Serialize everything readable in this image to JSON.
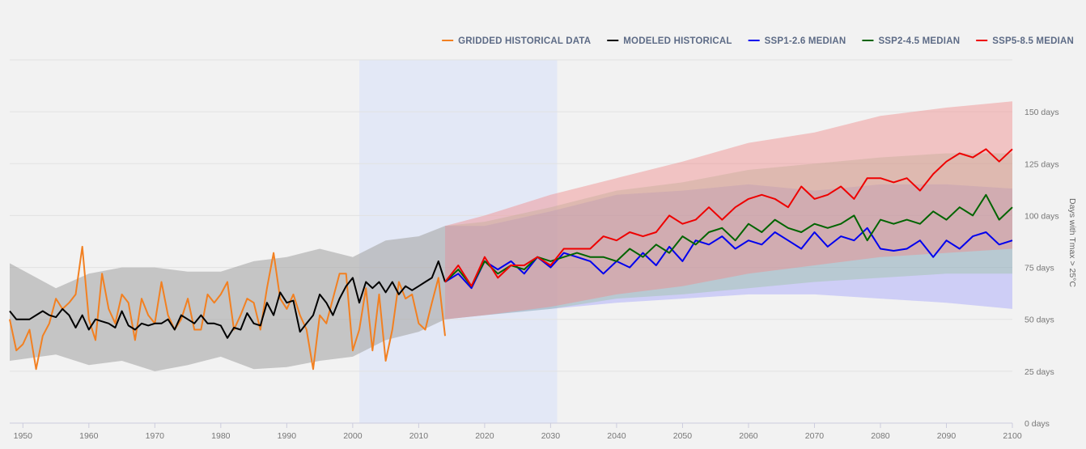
{
  "chart_data": {
    "type": "line",
    "ylabel": "Days with Tmax > 25°C",
    "xlim": [
      1948,
      2100
    ],
    "ylim": [
      0,
      175
    ],
    "x_ticks": [
      1950,
      1960,
      1970,
      1980,
      1990,
      2000,
      2010,
      2020,
      2030,
      2040,
      2050,
      2060,
      2070,
      2080,
      2090,
      2100
    ],
    "y_ticks": [
      0,
      25,
      50,
      75,
      100,
      125,
      150
    ],
    "y_tick_labels": [
      "0 days",
      "25 days",
      "50 days",
      "75 days",
      "100 days",
      "125 days",
      "150 days"
    ],
    "grid": true,
    "legend_position": "top-right",
    "highlight_period": [
      2001,
      2031
    ],
    "legend": [
      {
        "label": "GRIDDED HISTORICAL DATA",
        "color": "#f28021"
      },
      {
        "label": "MODELED HISTORICAL",
        "color": "#000000"
      },
      {
        "label": "SSP1-2.6 MEDIAN",
        "color": "#0000ee"
      },
      {
        "label": "SSP2-4.5 MEDIAN",
        "color": "#006400"
      },
      {
        "label": "SSP5-8.5 MEDIAN",
        "color": "#ee0000"
      }
    ],
    "bands": [
      {
        "name": "Modeled historical range",
        "color": "#a6a6a6",
        "opacity": 0.6,
        "x": [
          1948,
          1955,
          1960,
          1965,
          1970,
          1975,
          1980,
          1985,
          1990,
          1995,
          2000,
          2005,
          2010,
          2014
        ],
        "upper": [
          77,
          65,
          72,
          75,
          75,
          73,
          73,
          78,
          80,
          84,
          80,
          88,
          90,
          95
        ],
        "lower": [
          30,
          33,
          28,
          30,
          25,
          28,
          32,
          26,
          27,
          30,
          32,
          40,
          44,
          50
        ]
      },
      {
        "name": "SSP1-2.6 range",
        "color": "#8c8cff",
        "opacity": 0.35,
        "x": [
          2014,
          2020,
          2030,
          2040,
          2050,
          2060,
          2070,
          2080,
          2090,
          2100
        ],
        "upper": [
          95,
          95,
          102,
          110,
          112,
          115,
          112,
          115,
          115,
          113
        ],
        "lower": [
          50,
          52,
          55,
          58,
          60,
          62,
          62,
          60,
          58,
          55
        ]
      },
      {
        "name": "SSP2-4.5 range",
        "color": "#8fc08f",
        "opacity": 0.35,
        "x": [
          2014,
          2020,
          2030,
          2040,
          2050,
          2060,
          2070,
          2080,
          2090,
          2100
        ],
        "upper": [
          95,
          97,
          104,
          112,
          116,
          122,
          125,
          128,
          130,
          130
        ],
        "lower": [
          50,
          52,
          55,
          60,
          62,
          65,
          68,
          70,
          72,
          72
        ]
      },
      {
        "name": "SSP5-8.5 range",
        "color": "#f08a8a",
        "opacity": 0.45,
        "x": [
          2014,
          2020,
          2030,
          2040,
          2050,
          2060,
          2070,
          2080,
          2090,
          2100
        ],
        "upper": [
          95,
          100,
          110,
          118,
          126,
          135,
          140,
          148,
          152,
          155
        ],
        "lower": [
          50,
          52,
          56,
          62,
          66,
          72,
          76,
          80,
          82,
          84
        ]
      }
    ],
    "series": [
      {
        "name": "GRIDDED HISTORICAL DATA",
        "color": "#f28021",
        "x": [
          1948,
          1949,
          1950,
          1951,
          1952,
          1953,
          1954,
          1955,
          1956,
          1957,
          1958,
          1959,
          1960,
          1961,
          1962,
          1963,
          1964,
          1965,
          1966,
          1967,
          1968,
          1969,
          1970,
          1971,
          1972,
          1973,
          1974,
          1975,
          1976,
          1977,
          1978,
          1979,
          1980,
          1981,
          1982,
          1983,
          1984,
          1985,
          1986,
          1987,
          1988,
          1989,
          1990,
          1991,
          1992,
          1993,
          1994,
          1995,
          1996,
          1997,
          1998,
          1999,
          2000,
          2001,
          2002,
          2003,
          2004,
          2005,
          2006,
          2007,
          2008,
          2009,
          2010,
          2011,
          2012,
          2013,
          2014
        ],
        "values": [
          50,
          35,
          38,
          45,
          26,
          42,
          48,
          60,
          55,
          58,
          62,
          85,
          50,
          40,
          72,
          55,
          48,
          62,
          58,
          40,
          60,
          52,
          48,
          68,
          52,
          45,
          50,
          60,
          45,
          45,
          62,
          58,
          62,
          68,
          45,
          52,
          60,
          58,
          45,
          65,
          82,
          60,
          55,
          62,
          52,
          45,
          26,
          52,
          48,
          60,
          72,
          72,
          35,
          45,
          65,
          35,
          62,
          30,
          45,
          68,
          60,
          62,
          48,
          45,
          58,
          70,
          42
        ]
      },
      {
        "name": "MODELED HISTORICAL",
        "color": "#000000",
        "x": [
          1948,
          1949,
          1950,
          1951,
          1952,
          1953,
          1954,
          1955,
          1956,
          1957,
          1958,
          1959,
          1960,
          1961,
          1962,
          1963,
          1964,
          1965,
          1966,
          1967,
          1968,
          1969,
          1970,
          1971,
          1972,
          1973,
          1974,
          1975,
          1976,
          1977,
          1978,
          1979,
          1980,
          1981,
          1982,
          1983,
          1984,
          1985,
          1986,
          1987,
          1988,
          1989,
          1990,
          1991,
          1992,
          1993,
          1994,
          1995,
          1996,
          1997,
          1998,
          1999,
          2000,
          2001,
          2002,
          2003,
          2004,
          2005,
          2006,
          2007,
          2008,
          2009,
          2010,
          2011,
          2012,
          2013,
          2014
        ],
        "values": [
          54,
          50,
          50,
          50,
          52,
          54,
          52,
          51,
          55,
          52,
          46,
          52,
          45,
          50,
          49,
          48,
          46,
          54,
          47,
          45,
          48,
          47,
          48,
          48,
          50,
          45,
          52,
          50,
          48,
          52,
          48,
          48,
          47,
          41,
          46,
          45,
          53,
          48,
          47,
          58,
          52,
          63,
          58,
          59,
          44,
          48,
          52,
          62,
          58,
          52,
          60,
          66,
          70,
          58,
          68,
          65,
          68,
          63,
          68,
          62,
          66,
          64,
          66,
          68,
          70,
          78,
          68
        ]
      },
      {
        "name": "SSP1-2.6 MEDIAN",
        "color": "#0000ee",
        "x": [
          2014,
          2016,
          2018,
          2020,
          2022,
          2024,
          2026,
          2028,
          2030,
          2032,
          2034,
          2036,
          2038,
          2040,
          2042,
          2044,
          2046,
          2048,
          2050,
          2052,
          2054,
          2056,
          2058,
          2060,
          2062,
          2064,
          2066,
          2068,
          2070,
          2072,
          2074,
          2076,
          2078,
          2080,
          2082,
          2084,
          2086,
          2088,
          2090,
          2092,
          2094,
          2096,
          2098,
          2100
        ],
        "values": [
          68,
          72,
          65,
          78,
          74,
          78,
          72,
          80,
          75,
          82,
          80,
          78,
          72,
          78,
          75,
          82,
          76,
          85,
          78,
          88,
          86,
          90,
          84,
          88,
          86,
          92,
          88,
          84,
          92,
          85,
          90,
          88,
          94,
          84,
          83,
          84,
          88,
          80,
          88,
          84,
          90,
          92,
          86,
          88
        ]
      },
      {
        "name": "SSP2-4.5 MEDIAN",
        "color": "#006400",
        "x": [
          2014,
          2016,
          2018,
          2020,
          2022,
          2024,
          2026,
          2028,
          2030,
          2032,
          2034,
          2036,
          2038,
          2040,
          2042,
          2044,
          2046,
          2048,
          2050,
          2052,
          2054,
          2056,
          2058,
          2060,
          2062,
          2064,
          2066,
          2068,
          2070,
          2072,
          2074,
          2076,
          2078,
          2080,
          2082,
          2084,
          2086,
          2088,
          2090,
          2092,
          2094,
          2096,
          2098,
          2100
        ],
        "values": [
          68,
          74,
          66,
          78,
          72,
          76,
          74,
          80,
          78,
          80,
          82,
          80,
          80,
          78,
          84,
          80,
          86,
          82,
          90,
          86,
          92,
          94,
          88,
          96,
          92,
          98,
          94,
          92,
          96,
          94,
          96,
          100,
          88,
          98,
          96,
          98,
          96,
          102,
          98,
          104,
          100,
          110,
          98,
          104
        ]
      },
      {
        "name": "SSP5-8.5 MEDIAN",
        "color": "#ee0000",
        "x": [
          2014,
          2016,
          2018,
          2020,
          2022,
          2024,
          2026,
          2028,
          2030,
          2032,
          2034,
          2036,
          2038,
          2040,
          2042,
          2044,
          2046,
          2048,
          2050,
          2052,
          2054,
          2056,
          2058,
          2060,
          2062,
          2064,
          2066,
          2068,
          2070,
          2072,
          2074,
          2076,
          2078,
          2080,
          2082,
          2084,
          2086,
          2088,
          2090,
          2092,
          2094,
          2096,
          2098,
          2100
        ],
        "values": [
          68,
          76,
          66,
          80,
          70,
          76,
          76,
          80,
          76,
          84,
          84,
          84,
          90,
          88,
          92,
          90,
          92,
          100,
          96,
          98,
          104,
          98,
          104,
          108,
          110,
          108,
          104,
          114,
          108,
          110,
          114,
          108,
          118,
          118,
          116,
          118,
          112,
          120,
          126,
          130,
          128,
          132,
          126,
          132
        ]
      }
    ]
  }
}
